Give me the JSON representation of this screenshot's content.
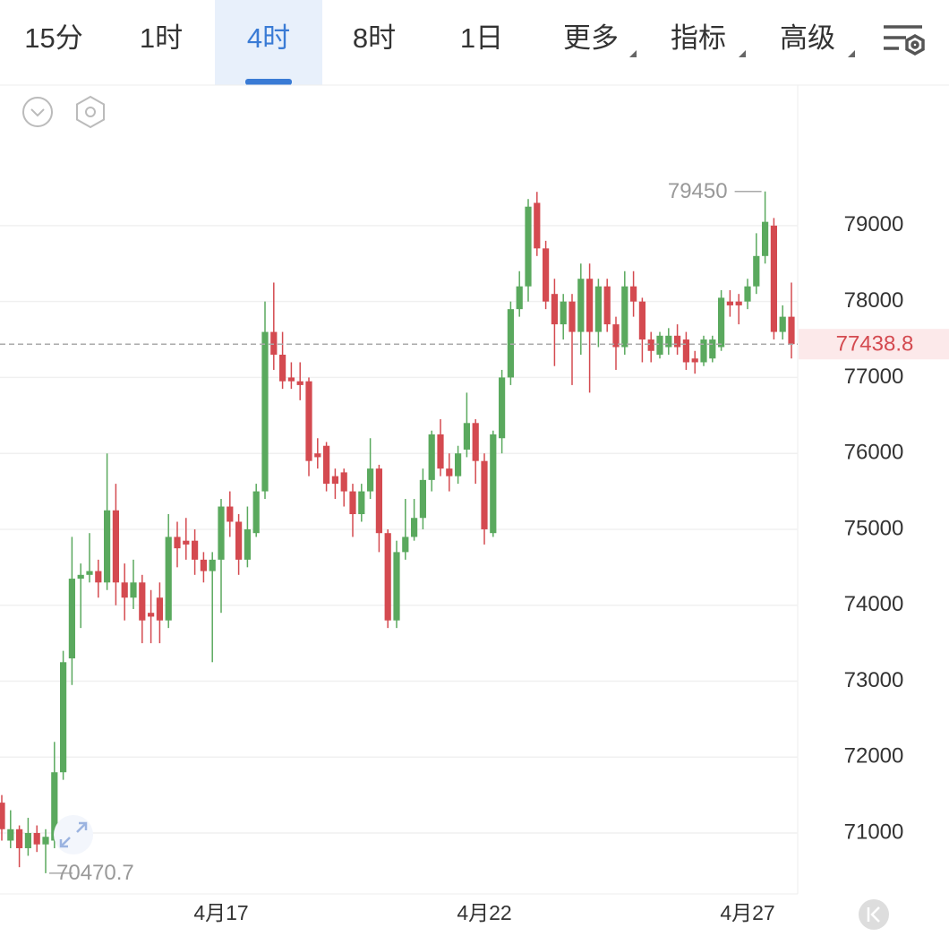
{
  "header": {
    "tabs": [
      "15分",
      "1时",
      "4时",
      "8时",
      "1日",
      "更多",
      "指标",
      "高级"
    ],
    "selected": 2
  },
  "chart_data": {
    "type": "candlestick",
    "categories": [
      null,
      null,
      null,
      null,
      null,
      null,
      null,
      null,
      null,
      null,
      null,
      null,
      null,
      null,
      null,
      null,
      null,
      null,
      null,
      null,
      null,
      null,
      null,
      null,
      null,
      "4月17",
      null,
      null,
      null,
      null,
      null,
      null,
      null,
      null,
      null,
      null,
      null,
      null,
      null,
      null,
      null,
      null,
      null,
      null,
      null,
      null,
      null,
      null,
      null,
      null,
      null,
      null,
      null,
      null,
      null,
      "4月22",
      null,
      null,
      null,
      null,
      null,
      null,
      null,
      null,
      null,
      null,
      null,
      null,
      null,
      null,
      null,
      null,
      null,
      null,
      null,
      null,
      null,
      null,
      null,
      null,
      null,
      null,
      null,
      null,
      null,
      "4月27",
      null,
      null,
      null,
      null,
      null
    ],
    "open": [
      71400,
      70900,
      71050,
      70800,
      71000,
      70850,
      70900,
      71800,
      73300,
      74350,
      74400,
      74450,
      74300,
      75250,
      74300,
      74100,
      74300,
      73900,
      74100,
      73800,
      74900,
      74850,
      74850,
      74600,
      74450,
      74600,
      75300,
      75100,
      74600,
      74950,
      75500,
      77600,
      77300,
      77000,
      76950,
      76950,
      76000,
      76100,
      75700,
      75750,
      75500,
      75200,
      75500,
      75800,
      74950,
      73800,
      74700,
      74900,
      75150,
      75650,
      76250,
      75800,
      75700,
      76050,
      76400,
      75900,
      74950,
      76200,
      77000,
      77900,
      78200,
      79300,
      78700,
      78100,
      77700,
      78000,
      77600,
      78300,
      77600,
      78200,
      77700,
      77400,
      78200,
      78000,
      77500,
      77300,
      77400,
      77550,
      77500,
      77250,
      77200,
      77250,
      77400,
      78000,
      78000,
      78000,
      78200,
      78600,
      79000,
      77600,
      77800
    ],
    "high": [
      71500,
      71300,
      71100,
      71200,
      71100,
      71050,
      72200,
      73400,
      74900,
      74550,
      74950,
      74600,
      76000,
      75600,
      74550,
      74600,
      74400,
      74200,
      74300,
      75200,
      75100,
      75150,
      75000,
      74700,
      74700,
      75400,
      75500,
      75200,
      75300,
      75600,
      78000,
      78250,
      77600,
      77200,
      77200,
      77000,
      76200,
      76150,
      75800,
      75800,
      75600,
      75600,
      76200,
      75850,
      75000,
      74850,
      75400,
      75400,
      75800,
      76300,
      76450,
      76000,
      76100,
      76800,
      76450,
      76000,
      76300,
      77100,
      78000,
      78400,
      79350,
      79444.7,
      78800,
      78300,
      78100,
      78100,
      78500,
      78500,
      78300,
      78300,
      77800,
      78400,
      78400,
      78050,
      77600,
      77600,
      77650,
      77700,
      77600,
      77350,
      77550,
      77550,
      78150,
      78150,
      78100,
      78300,
      78900,
      79450,
      79100,
      77950,
      78250
    ],
    "low": [
      70900,
      70800,
      70550,
      70700,
      70750,
      70470.7,
      70800,
      71700,
      72950,
      73700,
      74300,
      74100,
      74200,
      74000,
      73800,
      73950,
      73500,
      73500,
      73500,
      73700,
      74500,
      74600,
      74400,
      74300,
      73250,
      73900,
      74900,
      74400,
      74500,
      74900,
      75400,
      77100,
      76850,
      76850,
      76700,
      75700,
      75800,
      75500,
      75400,
      75300,
      74900,
      75100,
      75400,
      74700,
      73700,
      73700,
      74600,
      74850,
      75000,
      75500,
      75700,
      75500,
      75600,
      75950,
      75600,
      74800,
      74900,
      76000,
      76900,
      77800,
      78000,
      78600,
      77900,
      77150,
      77500,
      76900,
      77300,
      76800,
      77400,
      77600,
      77100,
      77300,
      77800,
      77200,
      77200,
      77250,
      77300,
      77300,
      77100,
      77050,
      77150,
      77200,
      77350,
      77800,
      77700,
      77900,
      78100,
      78500,
      77500,
      77500,
      77250
    ],
    "close": [
      71050,
      71050,
      70800,
      71000,
      70850,
      70950,
      71800,
      73250,
      74350,
      74400,
      74450,
      74300,
      75250,
      74300,
      74100,
      74300,
      73800,
      73850,
      73800,
      74900,
      74750,
      74800,
      74600,
      74450,
      74600,
      75300,
      75100,
      74600,
      75000,
      75500,
      77600,
      77300,
      76950,
      76950,
      76900,
      75900,
      75950,
      75600,
      75600,
      75500,
      75200,
      75500,
      75800,
      74950,
      73800,
      74700,
      74900,
      75150,
      75650,
      76250,
      75800,
      75700,
      76000,
      76400,
      75900,
      75000,
      76250,
      77000,
      77900,
      78200,
      79250,
      78700,
      78000,
      77700,
      78000,
      77600,
      78300,
      77600,
      78200,
      77700,
      77400,
      78200,
      78000,
      77500,
      77350,
      77550,
      77550,
      77400,
      77200,
      77200,
      77500,
      77500,
      78050,
      77950,
      77950,
      78200,
      78600,
      79050,
      77600,
      77800,
      77438.8
    ],
    "up_color": "#5aa95e",
    "down_color": "#d44a50",
    "ylim": [
      70198,
      80851
    ],
    "yticks": [
      79000,
      78000,
      77000,
      76000,
      75000,
      74000,
      73000,
      72000,
      71000
    ],
    "grid": true
  }
}
